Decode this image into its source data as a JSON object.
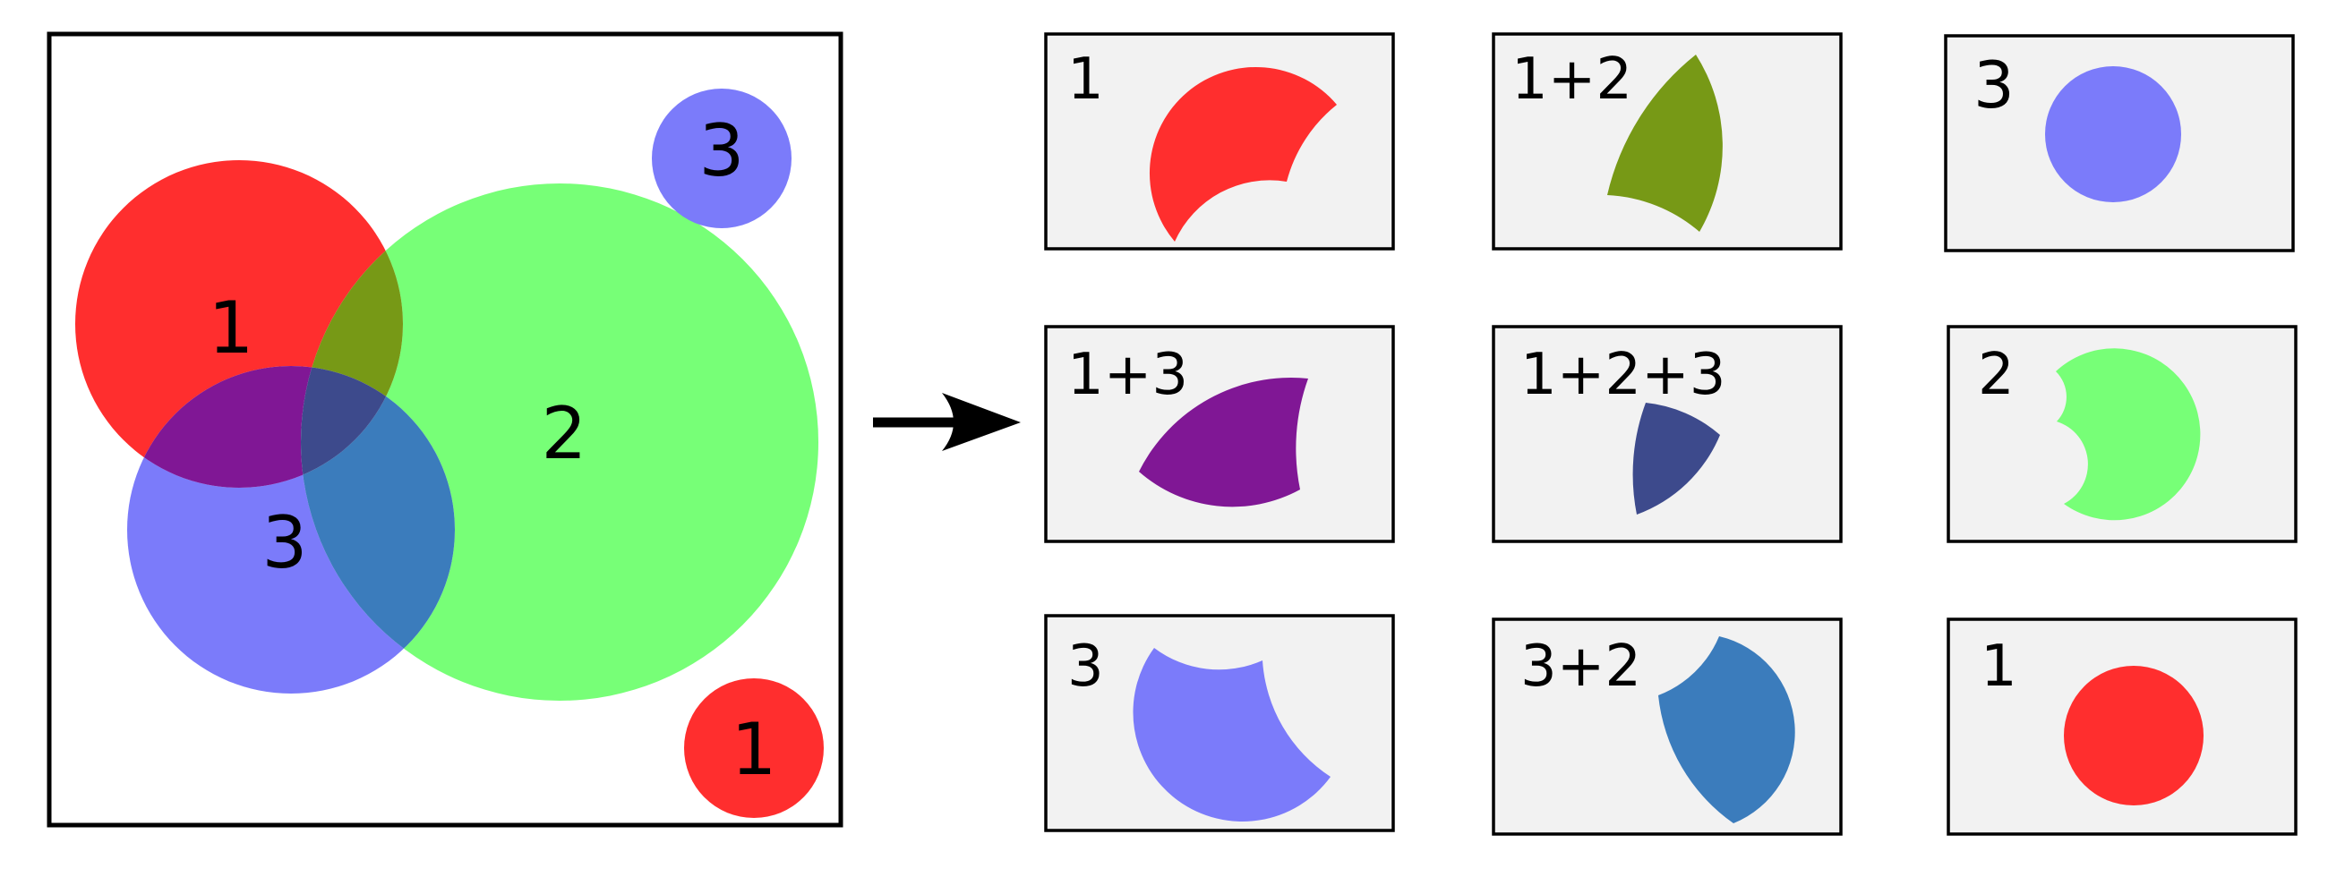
{
  "colors": {
    "red": "#ff2e2e",
    "green": "#77ff77",
    "blue": "#7b7bfa",
    "olive": "#779916",
    "purple": "#801795",
    "navy": "#3d4a8c",
    "steel": "#3b7cbc",
    "tile_bg": "#f2f2f2",
    "stroke": "#000000"
  },
  "main_figure": {
    "circle_labels": [
      "1",
      "2",
      "3",
      "3",
      "1"
    ]
  },
  "arrow": {
    "icon": "right-arrow-icon"
  },
  "tiles": [
    {
      "label": "1",
      "color": "red",
      "region": "only-1"
    },
    {
      "label": "1+2",
      "color": "olive",
      "region": "1-and-2"
    },
    {
      "label": "3",
      "color": "blue",
      "region": "small-circle-3"
    },
    {
      "label": "1+3",
      "color": "purple",
      "region": "1-and-3"
    },
    {
      "label": "1+2+3",
      "color": "navy",
      "region": "1-and-2-and-3"
    },
    {
      "label": "2",
      "color": "green",
      "region": "only-2"
    },
    {
      "label": "3",
      "color": "blue",
      "region": "only-3"
    },
    {
      "label": "3+2",
      "color": "steel",
      "region": "3-and-2"
    },
    {
      "label": "1",
      "color": "red",
      "region": "small-circle-1"
    }
  ]
}
